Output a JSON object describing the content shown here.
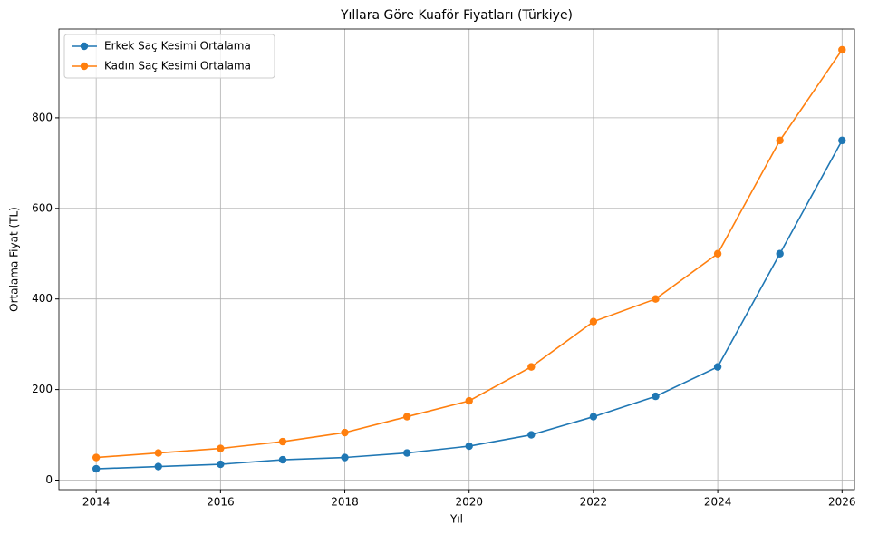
{
  "chart_data": {
    "type": "line",
    "title": "Yıllara Göre Kuaför Fiyatları (Türkiye)",
    "x_label": "Yıl",
    "y_label": "Ortalama Fiyat (TL)",
    "x": [
      2014,
      2015,
      2016,
      2017,
      2018,
      2019,
      2020,
      2021,
      2022,
      2023,
      2024,
      2025,
      2026
    ],
    "series": [
      {
        "name": "Erkek Saç Kesimi Ortalama",
        "color": "#1f77b4",
        "values": [
          25,
          30,
          35,
          45,
          50,
          60,
          75,
          100,
          140,
          185,
          250,
          500,
          750
        ]
      },
      {
        "name": "Kadın Saç Kesimi Ortalama",
        "color": "#ff7f0e",
        "values": [
          50,
          60,
          70,
          85,
          105,
          140,
          175,
          250,
          350,
          400,
          500,
          750,
          950
        ]
      }
    ],
    "xlim": [
      2013.4,
      2026.2
    ],
    "xticks": [
      2014,
      2016,
      2018,
      2020,
      2022,
      2024,
      2026
    ],
    "ylim": [
      -21,
      996
    ],
    "yticks": [
      0,
      200,
      400,
      600,
      800
    ],
    "grid": true,
    "legend": "upper-left"
  }
}
